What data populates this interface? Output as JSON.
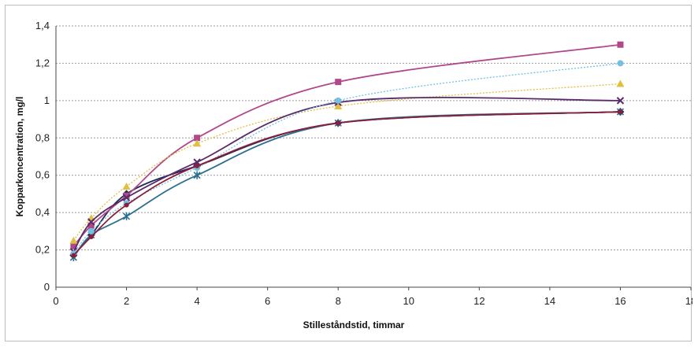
{
  "chart_data": {
    "type": "line",
    "title": "",
    "xlabel": "Stilleståndstid, timmar",
    "ylabel": "Kopparkoncentration, mg/l",
    "xlim": [
      0,
      18
    ],
    "ylim": [
      0,
      1.4
    ],
    "x_ticks": [
      "0",
      "2",
      "4",
      "6",
      "8",
      "10",
      "12",
      "14",
      "16",
      "18"
    ],
    "y_ticks": [
      "0",
      "0,2",
      "0,4",
      "0,6",
      "0,8",
      "1",
      "1,2",
      "1,4"
    ],
    "grid": "horizontal dashed",
    "legend": "none",
    "x": [
      0.5,
      1,
      2,
      4,
      8,
      16
    ],
    "series": [
      {
        "values": [
          0.17,
          0.28,
          0.5,
          0.65,
          0.88,
          0.94
        ],
        "color": "#1f2a5a",
        "marker": "diamond"
      },
      {
        "values": [
          0.22,
          0.33,
          0.49,
          0.8,
          1.1,
          1.3
        ],
        "color": "#b0488a",
        "marker": "square"
      },
      {
        "values": [
          0.25,
          0.37,
          0.54,
          0.77,
          0.97,
          1.09
        ],
        "color": "#e0c040",
        "marker": "triangle"
      },
      {
        "values": [
          0.19,
          0.35,
          0.48,
          0.67,
          0.99,
          1.0
        ],
        "color": "#5a2a6a",
        "marker": "x"
      },
      {
        "values": [
          0.16,
          0.28,
          0.38,
          0.6,
          0.88,
          0.94
        ],
        "color": "#2b6f8f",
        "marker": "star"
      },
      {
        "values": [
          0.18,
          0.3,
          0.45,
          0.64,
          1.0,
          1.2
        ],
        "color": "#74c0e0",
        "marker": "circle"
      },
      {
        "values": [
          0.17,
          0.27,
          0.44,
          0.65,
          0.88,
          0.94
        ],
        "color": "#8b1f3a",
        "marker": "dot"
      }
    ]
  }
}
